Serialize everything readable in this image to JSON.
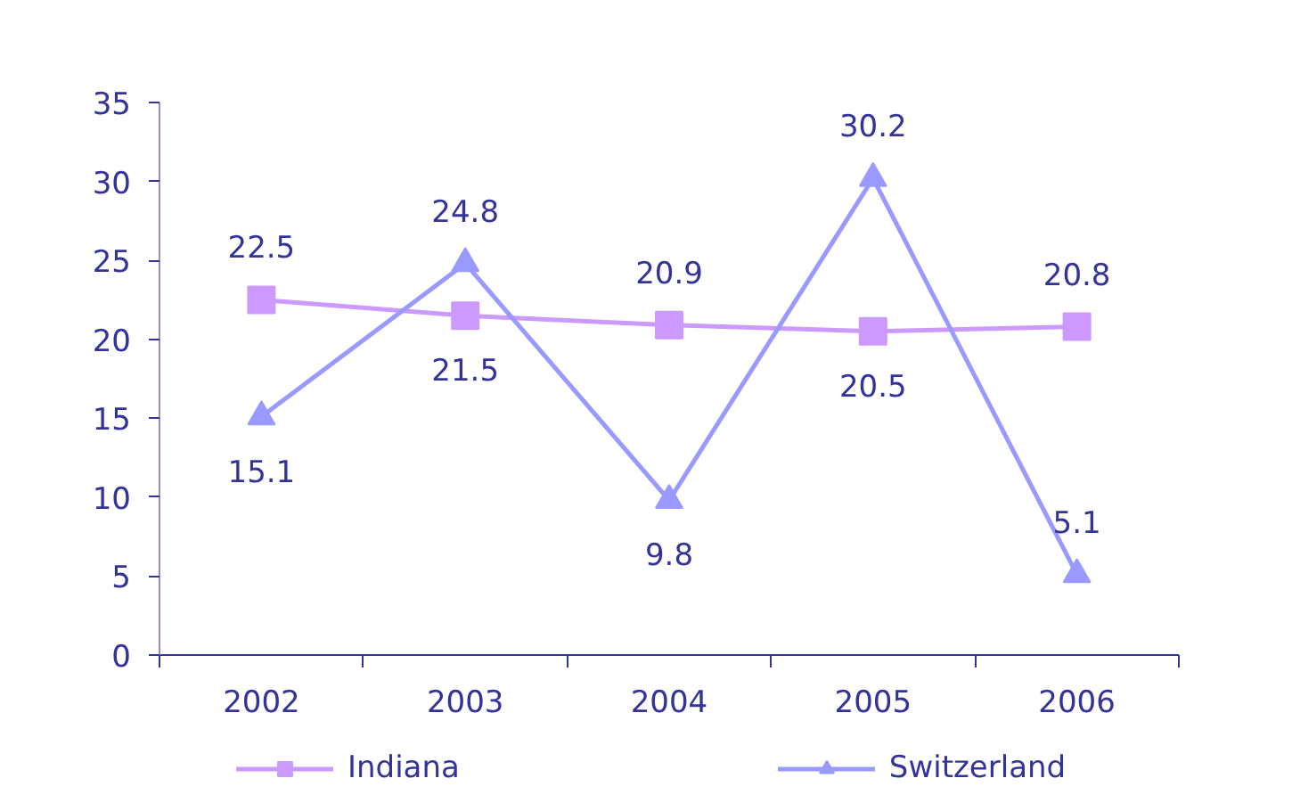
{
  "chart_data": {
    "type": "line",
    "categories": [
      "2002",
      "2003",
      "2004",
      "2005",
      "2006"
    ],
    "series": [
      {
        "name": "Indiana",
        "color": "#cc99ff",
        "marker": "square",
        "values": [
          22.5,
          21.5,
          20.9,
          20.5,
          20.8
        ]
      },
      {
        "name": "Switzerland",
        "color": "#9999ff",
        "marker": "triangle",
        "values": [
          15.1,
          24.8,
          9.8,
          30.2,
          5.1
        ]
      }
    ],
    "ylim": [
      0,
      35
    ],
    "yticks": [
      0,
      5,
      10,
      15,
      20,
      25,
      30,
      35
    ],
    "data_labels": true,
    "legend": "bottom",
    "line_style": "solid",
    "grid": false
  }
}
